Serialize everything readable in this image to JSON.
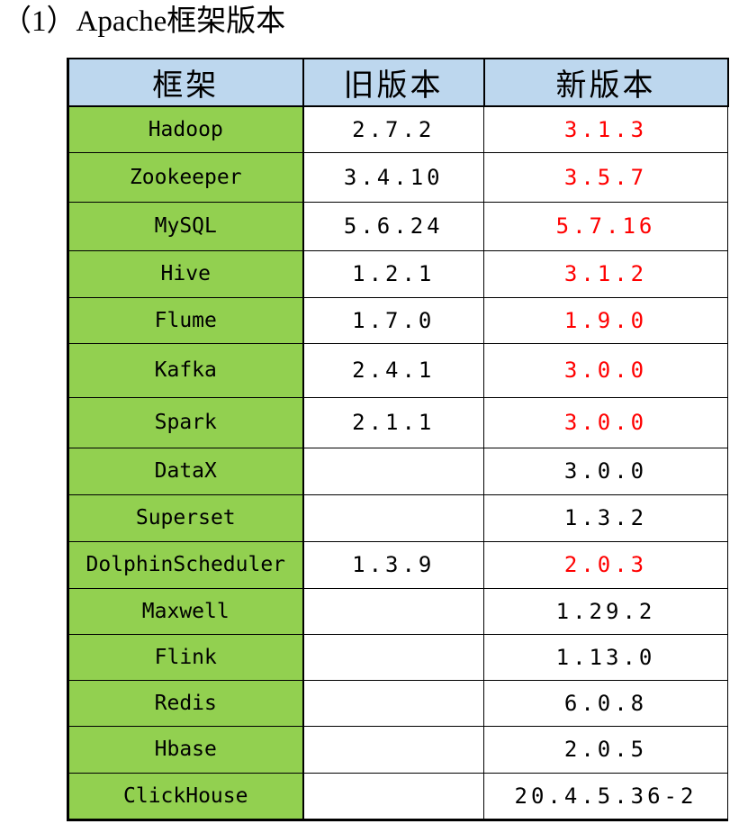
{
  "heading": "（1）Apache框架版本",
  "colors": {
    "header_bg": "#bdd7ee",
    "framework_bg": "#92d050",
    "highlight_text": "#ff0000"
  },
  "table": {
    "headers": [
      "框架",
      "旧版本",
      "新版本"
    ],
    "rows": [
      {
        "framework": "Hadoop",
        "old": "2.7.2",
        "new": "3.1.3",
        "highlight": true
      },
      {
        "framework": "Zookeeper",
        "old": "3.4.10",
        "new": "3.5.7",
        "highlight": true
      },
      {
        "framework": "MySQL",
        "old": "5.6.24",
        "new": "5.7.16",
        "highlight": true
      },
      {
        "framework": "Hive",
        "old": "1.2.1",
        "new": "3.1.2",
        "highlight": true
      },
      {
        "framework": "Flume",
        "old": "1.7.0",
        "new": "1.9.0",
        "highlight": true
      },
      {
        "framework": "Kafka",
        "old": "2.4.1",
        "new": "3.0.0",
        "highlight": true
      },
      {
        "framework": "Spark",
        "old": "2.1.1",
        "new": "3.0.0",
        "highlight": true
      },
      {
        "framework": "DataX",
        "old": "",
        "new": "3.0.0",
        "highlight": false
      },
      {
        "framework": "Superset",
        "old": "",
        "new": "1.3.2",
        "highlight": false
      },
      {
        "framework": "DolphinScheduler",
        "old": "1.3.9",
        "new": "2.0.3",
        "highlight": true
      },
      {
        "framework": "Maxwell",
        "old": "",
        "new": "1.29.2",
        "highlight": false
      },
      {
        "framework": "Flink",
        "old": "",
        "new": "1.13.0",
        "highlight": false
      },
      {
        "framework": "Redis",
        "old": "",
        "new": "6.0.8",
        "highlight": false
      },
      {
        "framework": "Hbase",
        "old": "",
        "new": "2.0.5",
        "highlight": false
      },
      {
        "framework": "ClickHouse",
        "old": "",
        "new": "20.4.5.36-2",
        "highlight": false
      }
    ]
  }
}
